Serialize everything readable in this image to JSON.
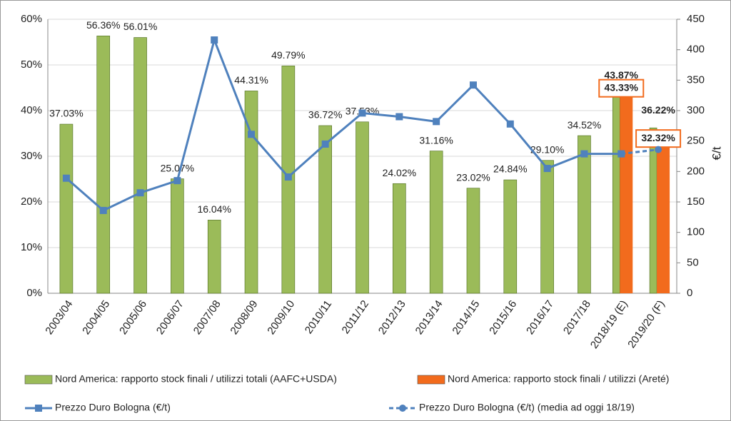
{
  "chart_data": {
    "type": "bar",
    "categories": [
      "2003/04",
      "2004/05",
      "2005/06",
      "2006/07",
      "2007/08",
      "2008/09",
      "2009/10",
      "2010/11",
      "2011/12",
      "2012/13",
      "2013/14",
      "2014/15",
      "2015/16",
      "2016/17",
      "2017/18",
      "2018/19 (E)",
      "2019/20 (F)"
    ],
    "series": [
      {
        "name": "Nord America: rapporto stock finali / utilizzi totali (AAFC+USDA)",
        "type": "bar",
        "color": "#9bbb59",
        "values": [
          37.03,
          56.36,
          56.01,
          25.07,
          16.04,
          44.31,
          49.79,
          36.72,
          37.53,
          24.02,
          31.16,
          23.02,
          24.84,
          29.1,
          34.52,
          43.87,
          36.22
        ],
        "value_labels": [
          "37.03%",
          "56.36%",
          "56.01%",
          "25.07%",
          "16.04%",
          "44.31%",
          "49.79%",
          "36.72%",
          "37.53%",
          "24.02%",
          "31.16%",
          "23.02%",
          "24.84%",
          "29.10%",
          "34.52%",
          "43.87%",
          "36.22%"
        ]
      },
      {
        "name": "Nord America: rapporto stock finali / utilizzi (Areté)",
        "type": "bar",
        "color": "#f26b1d",
        "values": [
          null,
          null,
          null,
          null,
          null,
          null,
          null,
          null,
          null,
          null,
          null,
          null,
          null,
          null,
          null,
          43.33,
          32.32
        ],
        "value_labels": [
          null,
          null,
          null,
          null,
          null,
          null,
          null,
          null,
          null,
          null,
          null,
          null,
          null,
          null,
          null,
          "43.33%",
          "32.32%"
        ]
      },
      {
        "name": "Prezzo Duro Bologna (€/t)",
        "type": "line",
        "axis": "y2",
        "color": "#4f81bd",
        "marker": "square",
        "values": [
          189,
          136,
          165,
          185,
          416,
          261,
          191,
          245,
          296,
          290,
          282,
          342,
          278,
          205,
          229,
          229,
          null
        ]
      },
      {
        "name": "Prezzo Duro Bologna (€/t) (media ad oggi 18/19)",
        "type": "line",
        "axis": "y2",
        "color": "#4f81bd",
        "marker": "circle",
        "dashed": true,
        "values": [
          null,
          null,
          null,
          null,
          null,
          null,
          null,
          null,
          null,
          null,
          null,
          null,
          null,
          null,
          null,
          229,
          236
        ]
      }
    ],
    "ylim": [
      0,
      60
    ],
    "yticks": [
      {
        "value": 0,
        "label": "0%"
      },
      {
        "value": 10,
        "label": "10%"
      },
      {
        "value": 20,
        "label": "20%"
      },
      {
        "value": 30,
        "label": "30%"
      },
      {
        "value": 40,
        "label": "40%"
      },
      {
        "value": 50,
        "label": "50%"
      },
      {
        "value": 60,
        "label": "60%"
      }
    ],
    "y2label": "€/t",
    "y2lim": [
      0,
      450
    ],
    "y2ticks": [
      0,
      50,
      100,
      150,
      200,
      250,
      300,
      350,
      400,
      450
    ],
    "grid": true
  }
}
